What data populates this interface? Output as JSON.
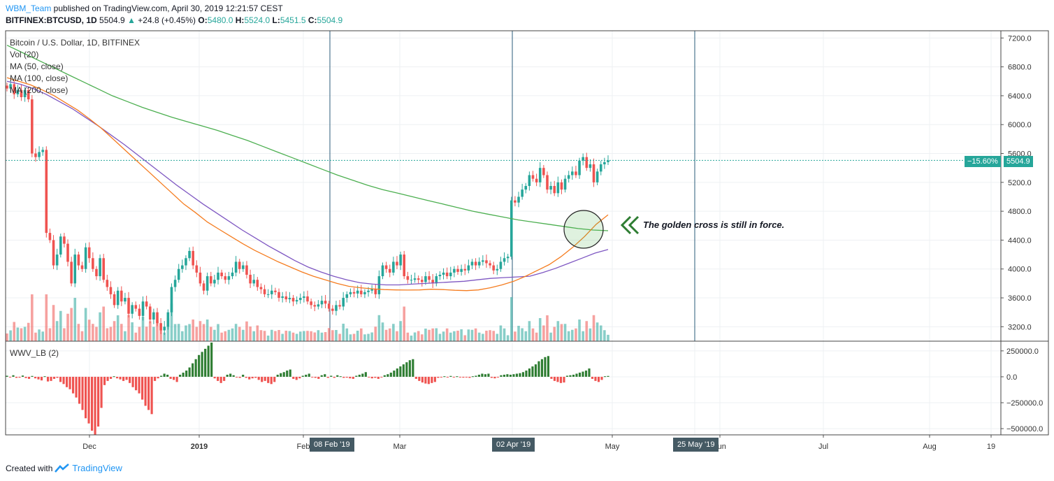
{
  "header": {
    "author": "WBM_Team",
    "published": " published on TradingView.com, April 30, 2019 12:21:57 CEST",
    "symbol": "BITFINEX:BTCUSD, 1D",
    "last": "5504.9",
    "change_icon": "up-triangle",
    "change": "+24.8 (+0.45%)",
    "o_label": "O:",
    "o_val": "5480.0",
    "h_label": "H:",
    "h_val": "5524.0",
    "l_label": "L:",
    "l_val": "5451.5",
    "c_label": "C:",
    "c_val": "5504.9"
  },
  "legend": {
    "title": "Bitcoin / U.S. Dollar, 1D, BITFINEX",
    "vol": "Vol (20)",
    "ma50": "MA (50, close)",
    "ma100": "MA (100, close)",
    "ma200": "MA (200, close)"
  },
  "oscillator": {
    "label": "WWV_LB (2)"
  },
  "annotation": {
    "text": "The golden cross is still in force.",
    "icon": "double-chevron-left-icon"
  },
  "price_tag": {
    "pct": "−15.60%",
    "value": "5504.9"
  },
  "date_tags": [
    "08 Feb '19",
    "02 Apr '19",
    "25 May '19"
  ],
  "footer": {
    "created": "Created with",
    "brand": "TradingView"
  },
  "colors": {
    "up": "#26a69a",
    "down": "#ef5350",
    "ma50": "#f57c1f",
    "ma100": "#7e57c2",
    "ma200": "#4caf50",
    "vline": "#2a5b7a"
  },
  "chart_data": {
    "type": "candlestick",
    "symbol": "BTCUSD",
    "interval": "1D",
    "price_axis": {
      "ticks": [
        "7200.0",
        "6800.0",
        "6400.0",
        "6000.0",
        "5600.0",
        "5200.0",
        "4800.0",
        "4400.0",
        "4000.0",
        "3600.0",
        "3200.0"
      ],
      "range": [
        3000,
        7300
      ]
    },
    "osc_axis": {
      "ticks": [
        "250000.0",
        "0.0",
        "−250000.0",
        "−500000.0"
      ],
      "range": [
        -560000,
        330000
      ]
    },
    "time_axis": {
      "ticks": [
        "Dec",
        "2019",
        "Feb",
        "Mar",
        "May",
        "Jun",
        "Jul",
        "Aug",
        "19"
      ]
    },
    "vertical_lines": [
      "08 Feb '19",
      "02 Apr '19",
      "25 May '19"
    ],
    "last_price": 5504.9,
    "close_series": [
      6500,
      6560,
      6420,
      6480,
      6380,
      6480,
      6350,
      5600,
      5550,
      5620,
      5650,
      4500,
      4400,
      4050,
      4200,
      4450,
      4350,
      4100,
      3800,
      4200,
      4050,
      4000,
      4300,
      4150,
      4000,
      3900,
      4150,
      3850,
      3750,
      3650,
      3500,
      3700,
      3550,
      3600,
      3380,
      3500,
      3450,
      3350,
      3550,
      3480,
      3300,
      3400,
      3250,
      3150,
      3200,
      3400,
      3750,
      3850,
      4000,
      4050,
      4150,
      4250,
      4050,
      3950,
      3800,
      3700,
      3900,
      3800,
      3850,
      3950,
      3900,
      3850,
      3900,
      3950,
      4100,
      4000,
      4050,
      3920,
      3800,
      3850,
      3750,
      3720,
      3650,
      3650,
      3700,
      3680,
      3600,
      3620,
      3580,
      3600,
      3550,
      3570,
      3600,
      3620,
      3550,
      3500,
      3480,
      3510,
      3560,
      3520,
      3450,
      3420,
      3500,
      3480,
      3600,
      3650,
      3680,
      3660,
      3700,
      3650,
      3680,
      3700,
      3720,
      3650,
      3900,
      4050,
      4000,
      3950,
      4100,
      4050,
      4200,
      3900,
      3850,
      3850,
      3870,
      3850,
      3820,
      3900,
      3850,
      3800,
      3900,
      3920,
      3950,
      3900,
      3950,
      4000,
      3960,
      4000,
      3980,
      4050,
      4100,
      4050,
      4100,
      4120,
      4080,
      4050,
      3980,
      4000,
      4100,
      4150,
      4170,
      4950,
      4920,
      5000,
      5100,
      5150,
      5300,
      5250,
      5200,
      5400,
      5300,
      5100,
      5150,
      5050,
      5200,
      5100,
      5250,
      5300,
      5350,
      5300,
      5500,
      5550,
      5400,
      5450,
      5200,
      5350,
      5450,
      5480,
      5504.9
    ],
    "ma50": [
      6650,
      6600,
      6550,
      6480,
      6400,
      6300,
      6200,
      6080,
      5950,
      5800,
      5650,
      5500,
      5350,
      5200,
      5050,
      4900,
      4780,
      4650,
      4550,
      4450,
      4350,
      4260,
      4180,
      4100,
      4030,
      3960,
      3900,
      3850,
      3800,
      3760,
      3740,
      3725,
      3715,
      3710,
      3708,
      3710,
      3720,
      3715,
      3705,
      3700,
      3710,
      3740,
      3780,
      3830,
      3900,
      3980,
      4060,
      4170,
      4300,
      4450,
      4620,
      4750
    ],
    "ma100": [
      6600,
      6560,
      6500,
      6420,
      6320,
      6220,
      6100,
      5980,
      5850,
      5720,
      5580,
      5440,
      5300,
      5160,
      5030,
      4900,
      4780,
      4660,
      4540,
      4430,
      4320,
      4220,
      4120,
      4030,
      3960,
      3900,
      3850,
      3810,
      3790,
      3780,
      3780,
      3790,
      3800,
      3810,
      3820,
      3830,
      3850,
      3870,
      3880,
      3890,
      3900,
      3950,
      4010,
      4080,
      4150,
      4220,
      4270
    ],
    "ma200": [
      7100,
      7000,
      6900,
      6800,
      6700,
      6600,
      6500,
      6400,
      6320,
      6240,
      6170,
      6100,
      6040,
      5980,
      5920,
      5850,
      5780,
      5700,
      5620,
      5540,
      5460,
      5380,
      5300,
      5230,
      5160,
      5100,
      5050,
      5000,
      4950,
      4900,
      4850,
      4800,
      4760,
      4720,
      4680,
      4650,
      4620,
      4590,
      4560,
      4540,
      4530
    ],
    "osc_values": [
      10000,
      -5000,
      15000,
      -10000,
      -8000,
      12000,
      -12000,
      -20000,
      8000,
      -15000,
      -25000,
      -35000,
      5000,
      -45000,
      -40000,
      -20000,
      -10000,
      -50000,
      -70000,
      -100000,
      -120000,
      -160000,
      -200000,
      -260000,
      -320000,
      -400000,
      -450000,
      -520000,
      -560000,
      -480000,
      -300000,
      -80000,
      -40000,
      -20000,
      5000,
      -15000,
      -25000,
      -40000,
      -30000,
      -60000,
      -100000,
      -130000,
      -160000,
      -220000,
      -280000,
      -320000,
      -360000,
      -40000,
      -15000,
      10000,
      30000,
      20000,
      -20000,
      -30000,
      -50000,
      20000,
      40000,
      60000,
      90000,
      130000,
      170000,
      210000,
      240000,
      270000,
      300000,
      330000,
      -15000,
      -40000,
      -60000,
      -40000,
      20000,
      30000,
      15000,
      -5000,
      -10000,
      20000,
      -10000,
      -25000,
      -15000,
      -10000,
      -30000,
      -50000,
      -40000,
      -60000,
      -70000,
      -50000,
      20000,
      35000,
      45000,
      60000,
      70000,
      -20000,
      -30000,
      -15000,
      10000,
      20000,
      30000,
      -5000,
      -10000,
      -20000,
      15000,
      25000,
      -10000,
      10000,
      -10000,
      15000,
      5000,
      -10000,
      -8000,
      -15000,
      -20000,
      10000,
      20000,
      30000,
      45000,
      -5000,
      -15000,
      -10000,
      -20000,
      -5000,
      15000,
      25000,
      40000,
      60000,
      80000,
      100000,
      120000,
      140000,
      160000,
      170000,
      -20000,
      -40000,
      -55000,
      -65000,
      -70000,
      -60000,
      -50000,
      -10000,
      -5000,
      5000,
      -5000,
      8000,
      -5000,
      5000,
      -3000,
      -8000,
      -5000,
      -10000,
      5000,
      10000,
      20000,
      30000,
      25000,
      30000,
      -10000,
      -15000,
      -5000,
      15000,
      20000,
      25000,
      20000,
      25000,
      30000,
      35000,
      45000,
      60000,
      80000,
      100000,
      120000,
      150000,
      170000,
      190000,
      200000,
      -20000,
      -40000,
      -50000,
      -60000,
      -55000,
      10000,
      15000,
      20000,
      30000,
      40000,
      50000,
      60000,
      80000,
      -20000,
      -40000,
      -50000,
      -30000,
      5000,
      8000
    ]
  }
}
